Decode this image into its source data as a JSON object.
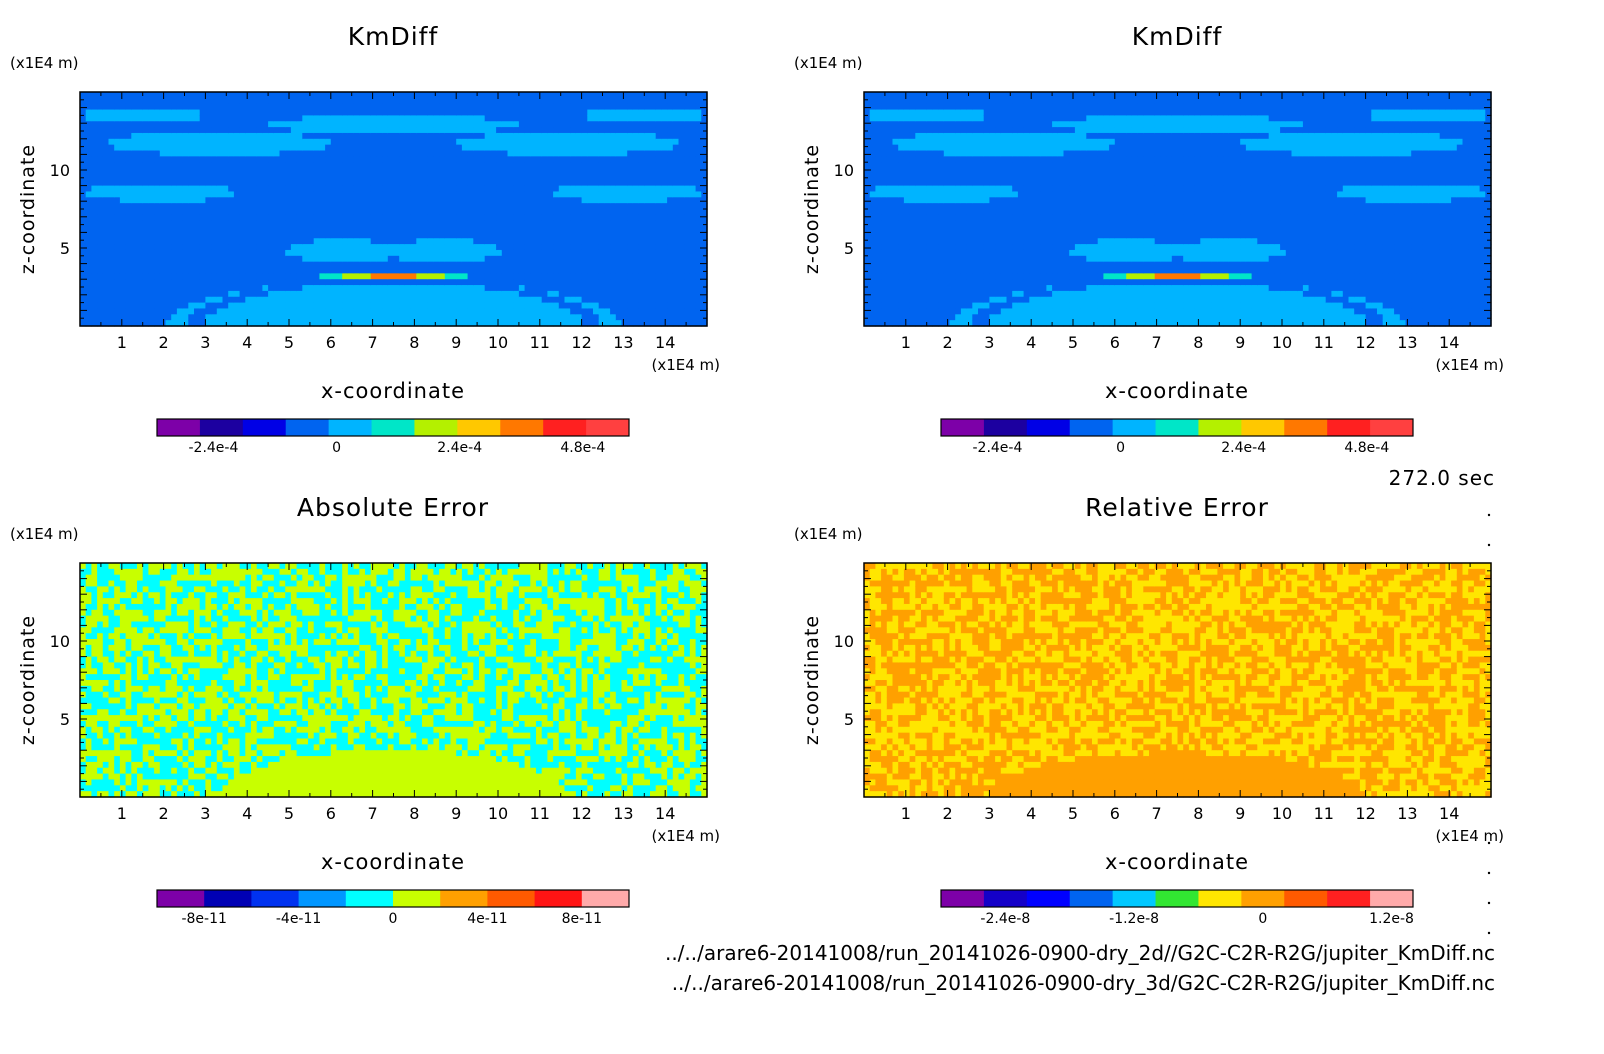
{
  "time_label": "272.0 sec",
  "files": [
    "../../arare6-20141008/run_20141026-0900-dry_2d//G2C-C2R-R2G/jupiter_KmDiff.nc",
    "../../arare6-20141008/run_20141026-0900-dry_3d/G2C-C2R-R2G/jupiter_KmDiff.nc"
  ],
  "chart_data": [
    {
      "type": "heatmap",
      "title": "KmDiff",
      "xlabel": "x-coordinate",
      "ylabel": "z-coordinate",
      "x_unit": "(x1E4 m)",
      "y_unit": "(x1E4 m)",
      "x_ticks": [
        "1",
        "2",
        "3",
        "4",
        "5",
        "6",
        "7",
        "8",
        "9",
        "10",
        "11",
        "12",
        "13",
        "14"
      ],
      "y_ticks": [
        "5",
        "10"
      ],
      "xlim": [
        0,
        15
      ],
      "ylim": [
        0,
        15
      ],
      "field": "km",
      "colorbar": {
        "colors": [
          "#7d00a8",
          "#1c00a0",
          "#0000e6",
          "#0064f0",
          "#00b4ff",
          "#00e6c8",
          "#b4f000",
          "#ffc800",
          "#ff7800",
          "#ff2020",
          "#ff4040"
        ],
        "tick_labels": [
          "-2.4e-4",
          "0",
          "2.4e-4",
          "4.8e-4"
        ],
        "tick_values": [
          -0.00024,
          0,
          0.00024,
          0.00048
        ],
        "range": [
          -0.00035,
          0.00057
        ]
      }
    },
    {
      "type": "heatmap",
      "title": "KmDiff",
      "xlabel": "x-coordinate",
      "ylabel": "z-coordinate",
      "x_unit": "(x1E4 m)",
      "y_unit": "(x1E4 m)",
      "x_ticks": [
        "1",
        "2",
        "3",
        "4",
        "5",
        "6",
        "7",
        "8",
        "9",
        "10",
        "11",
        "12",
        "13",
        "14"
      ],
      "y_ticks": [
        "5",
        "10"
      ],
      "xlim": [
        0,
        15
      ],
      "ylim": [
        0,
        15
      ],
      "field": "km",
      "colorbar": {
        "colors": [
          "#7d00a8",
          "#1c00a0",
          "#0000e6",
          "#0064f0",
          "#00b4ff",
          "#00e6c8",
          "#b4f000",
          "#ffc800",
          "#ff7800",
          "#ff2020",
          "#ff4040"
        ],
        "tick_labels": [
          "-2.4e-4",
          "0",
          "2.4e-4",
          "4.8e-4"
        ],
        "tick_values": [
          -0.00024,
          0,
          0.00024,
          0.00048
        ],
        "range": [
          -0.00035,
          0.00057
        ]
      }
    },
    {
      "type": "heatmap",
      "title": "Absolute Error",
      "xlabel": "x-coordinate",
      "ylabel": "z-coordinate",
      "x_unit": "(x1E4 m)",
      "y_unit": "(x1E4 m)",
      "x_ticks": [
        "1",
        "2",
        "3",
        "4",
        "5",
        "6",
        "7",
        "8",
        "9",
        "10",
        "11",
        "12",
        "13",
        "14"
      ],
      "y_ticks": [
        "5",
        "10"
      ],
      "xlim": [
        0,
        15
      ],
      "ylim": [
        0,
        15
      ],
      "field": "abs",
      "colorbar": {
        "colors": [
          "#7d00a8",
          "#0000b4",
          "#0032f0",
          "#0096ff",
          "#00ffff",
          "#c8ff00",
          "#ffa000",
          "#ff5a00",
          "#ff1414",
          "#ffaaaa"
        ],
        "tick_labels": [
          "-8e-11",
          "-4e-11",
          "0",
          "4e-11",
          "8e-11"
        ],
        "tick_values": [
          -8e-11,
          -4e-11,
          0,
          4e-11,
          8e-11
        ],
        "range": [
          -1e-10,
          1e-10
        ]
      }
    },
    {
      "type": "heatmap",
      "title": "Relative Error",
      "xlabel": "x-coordinate",
      "ylabel": "z-coordinate",
      "x_unit": "(x1E4 m)",
      "y_unit": "(x1E4 m)",
      "x_ticks": [
        "1",
        "2",
        "3",
        "4",
        "5",
        "6",
        "7",
        "8",
        "9",
        "10",
        "11",
        "12",
        "13",
        "14"
      ],
      "y_ticks": [
        "5",
        "10"
      ],
      "xlim": [
        0,
        15
      ],
      "ylim": [
        0,
        15
      ],
      "field": "rel",
      "colorbar": {
        "colors": [
          "#7d00a8",
          "#1400c8",
          "#0000ff",
          "#0064f0",
          "#00c8ff",
          "#32e632",
          "#ffe600",
          "#ffa000",
          "#ff5a00",
          "#ff2020",
          "#ffaaaa"
        ],
        "tick_labels": [
          "-2.4e-8",
          "-1.2e-8",
          "0",
          "1.2e-8"
        ],
        "tick_values": [
          -2.4e-08,
          -1.2e-08,
          0,
          1.2e-08
        ],
        "range": [
          -3e-08,
          1.4e-08
        ]
      }
    }
  ]
}
